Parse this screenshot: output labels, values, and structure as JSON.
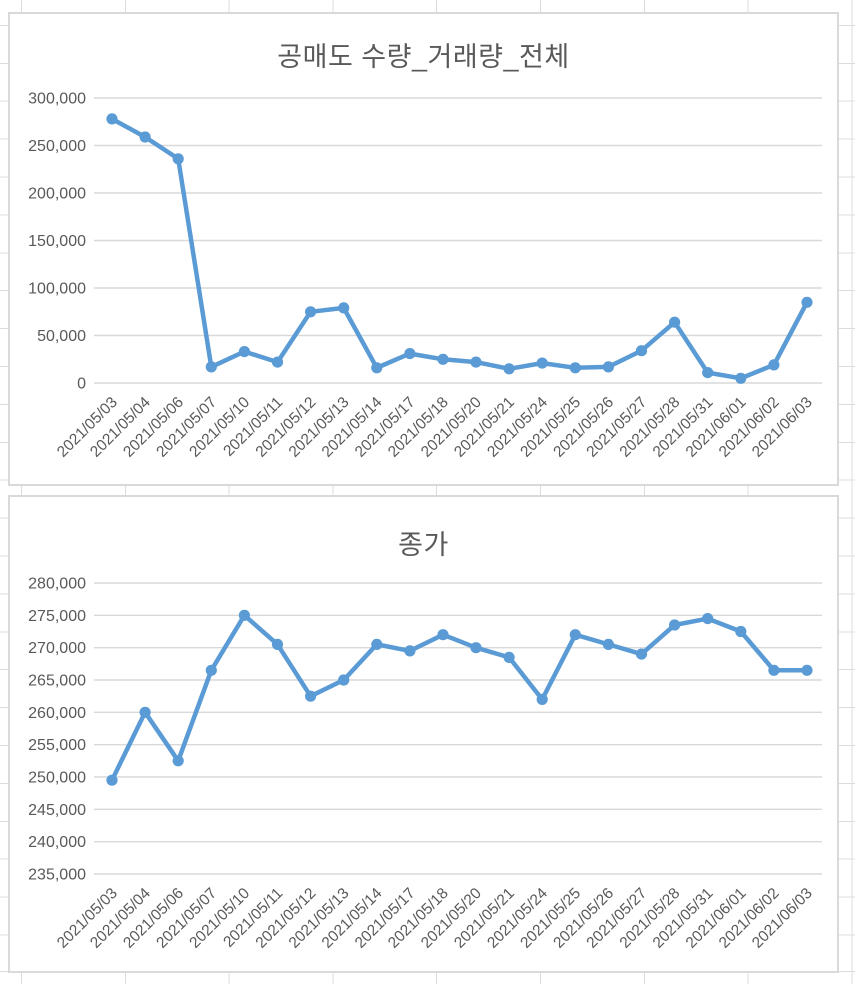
{
  "colors": {
    "series_line": "#5b9bd5",
    "marker_fill": "#5b9bd5",
    "title_text": "#595959",
    "axis_text": "#595959",
    "chart_gridline": "#d9d9d9",
    "chart_border": "#d9d9d9",
    "sheet_gridline": "#dcdcdc",
    "chart_background": "#ffffff"
  },
  "categories": [
    "2021/05/03",
    "2021/05/04",
    "2021/05/06",
    "2021/05/07",
    "2021/05/10",
    "2021/05/11",
    "2021/05/12",
    "2021/05/13",
    "2021/05/14",
    "2021/05/17",
    "2021/05/18",
    "2021/05/20",
    "2021/05/21",
    "2021/05/24",
    "2021/05/25",
    "2021/05/26",
    "2021/05/27",
    "2021/05/28",
    "2021/05/31",
    "2021/06/01",
    "2021/06/02",
    "2021/06/03"
  ],
  "chart_data": [
    {
      "type": "line",
      "title": "공매도 수량_거래량_전체",
      "categories": [
        "2021/05/03",
        "2021/05/04",
        "2021/05/06",
        "2021/05/07",
        "2021/05/10",
        "2021/05/11",
        "2021/05/12",
        "2021/05/13",
        "2021/05/14",
        "2021/05/17",
        "2021/05/18",
        "2021/05/20",
        "2021/05/21",
        "2021/05/24",
        "2021/05/25",
        "2021/05/26",
        "2021/05/27",
        "2021/05/28",
        "2021/05/31",
        "2021/06/01",
        "2021/06/02",
        "2021/06/03"
      ],
      "values": [
        278000,
        259000,
        236000,
        17000,
        33000,
        22000,
        75000,
        79000,
        16000,
        31000,
        25000,
        22000,
        15000,
        21000,
        16000,
        17000,
        34000,
        64000,
        11000,
        5000,
        19000,
        85000
      ],
      "xlabel": "",
      "ylabel": "",
      "ylim": [
        0,
        300000
      ],
      "ytick_step": 50000,
      "ytick_labels": [
        "0",
        "50,000",
        "100,000",
        "150,000",
        "200,000",
        "250,000",
        "300,000"
      ],
      "grid": true,
      "legend": "none",
      "markers": true
    },
    {
      "type": "line",
      "title": "종가",
      "categories": [
        "2021/05/03",
        "2021/05/04",
        "2021/05/06",
        "2021/05/07",
        "2021/05/10",
        "2021/05/11",
        "2021/05/12",
        "2021/05/13",
        "2021/05/14",
        "2021/05/17",
        "2021/05/18",
        "2021/05/20",
        "2021/05/21",
        "2021/05/24",
        "2021/05/25",
        "2021/05/26",
        "2021/05/27",
        "2021/05/28",
        "2021/05/31",
        "2021/06/01",
        "2021/06/02",
        "2021/06/03"
      ],
      "values": [
        249500,
        260000,
        252500,
        266500,
        275000,
        270500,
        262500,
        265000,
        270500,
        269500,
        272000,
        270000,
        268500,
        262000,
        272000,
        270500,
        269000,
        273500,
        274500,
        272500,
        266500,
        266500
      ],
      "xlabel": "",
      "ylabel": "",
      "ylim": [
        235000,
        280000
      ],
      "ytick_step": 5000,
      "ytick_labels": [
        "235,000",
        "240,000",
        "245,000",
        "250,000",
        "255,000",
        "260,000",
        "265,000",
        "270,000",
        "275,000",
        "280,000"
      ],
      "grid": true,
      "legend": "none",
      "markers": true
    }
  ]
}
